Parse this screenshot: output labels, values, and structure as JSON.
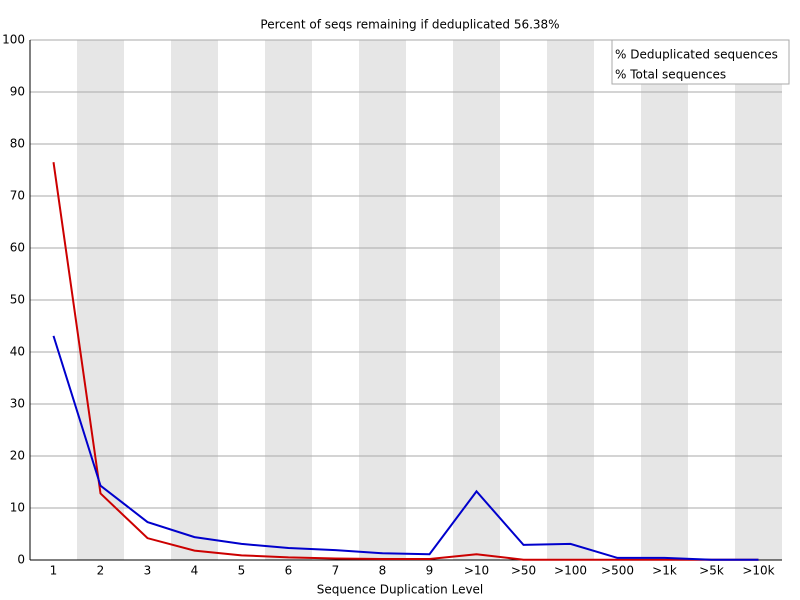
{
  "chart_data": {
    "type": "line",
    "title": "Percent of seqs remaining if deduplicated 56.38%",
    "x_label": "Sequence Duplication Level",
    "categories": [
      "1",
      "2",
      "3",
      "4",
      "5",
      "6",
      "7",
      "8",
      "9",
      ">10",
      ">50",
      ">100",
      ">500",
      ">1k",
      ">5k",
      ">10k"
    ],
    "series": [
      {
        "name": "% Deduplicated sequences",
        "color": "#cc0000",
        "values": [
          76.5,
          12.8,
          4.2,
          1.8,
          0.9,
          0.5,
          0.3,
          0.2,
          0.2,
          1.1,
          0.05,
          0.05,
          0.05,
          0.05,
          0.05,
          0.05
        ]
      },
      {
        "name": "% Total sequences",
        "color": "#0000cc",
        "values": [
          43.1,
          14.3,
          7.3,
          4.4,
          3.1,
          2.3,
          1.9,
          1.3,
          1.1,
          13.2,
          2.9,
          3.1,
          0.4,
          0.4,
          0.05,
          0.05
        ]
      }
    ],
    "ylim": [
      0,
      100
    ],
    "yticks": [
      0,
      10,
      20,
      30,
      40,
      50,
      60,
      70,
      80,
      90,
      100
    ],
    "grid": true,
    "legend": "top-right"
  }
}
